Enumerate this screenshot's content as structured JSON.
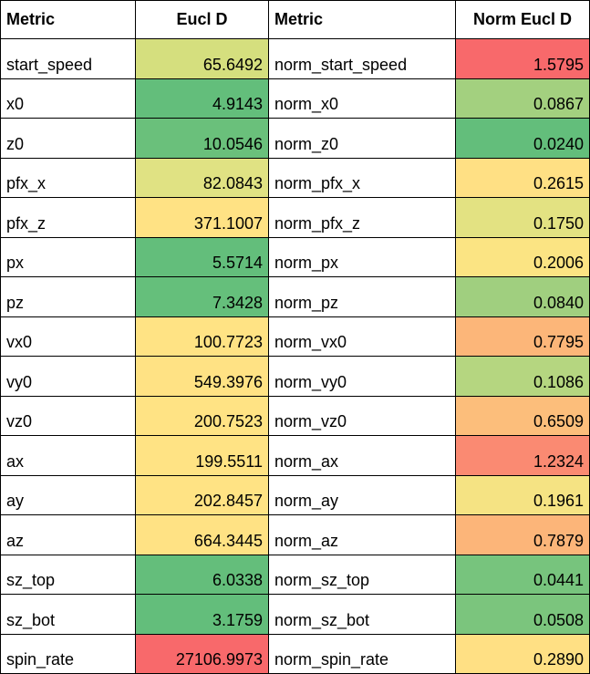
{
  "headers": [
    "Metric",
    "Eucl D",
    "Metric",
    "Norm Eucl D"
  ],
  "rows": [
    {
      "metric": "start_speed",
      "eucl_d": "65.6492",
      "eucl_color": "#d5df7e",
      "norm_metric": "norm_start_speed",
      "norm_eucl_d": "1.5795",
      "norm_color": "#f8696b"
    },
    {
      "metric": "x0",
      "eucl_d": "4.9143",
      "eucl_color": "#63be7b",
      "norm_metric": "norm_x0",
      "norm_eucl_d": "0.0867",
      "norm_color": "#a3d07f"
    },
    {
      "metric": "z0",
      "eucl_d": "10.0546",
      "eucl_color": "#6ac07b",
      "norm_metric": "norm_z0",
      "norm_eucl_d": "0.0240",
      "norm_color": "#63be7b"
    },
    {
      "metric": "pfx_x",
      "eucl_d": "82.0843",
      "eucl_color": "#e0e283",
      "norm_metric": "norm_pfx_x",
      "norm_eucl_d": "0.2615",
      "norm_color": "#ffe084"
    },
    {
      "metric": "pfx_z",
      "eucl_d": "371.1007",
      "eucl_color": "#ffe284",
      "norm_metric": "norm_pfx_z",
      "norm_eucl_d": "0.1750",
      "norm_color": "#e3e282"
    },
    {
      "metric": "px",
      "eucl_d": "5.5714",
      "eucl_color": "#63be7b",
      "norm_metric": "norm_px",
      "norm_eucl_d": "0.2006",
      "norm_color": "#fbe483"
    },
    {
      "metric": "pz",
      "eucl_d": "7.3428",
      "eucl_color": "#65bf7b",
      "norm_metric": "norm_pz",
      "norm_eucl_d": "0.0840",
      "norm_color": "#a0cf7f"
    },
    {
      "metric": "vx0",
      "eucl_d": "100.7723",
      "eucl_color": "#ffe384",
      "norm_metric": "norm_vx0",
      "norm_eucl_d": "0.7795",
      "norm_color": "#fcb679"
    },
    {
      "metric": "vy0",
      "eucl_d": "549.3976",
      "eucl_color": "#ffe284",
      "norm_metric": "norm_vy0",
      "norm_eucl_d": "0.1086",
      "norm_color": "#b5d680"
    },
    {
      "metric": "vz0",
      "eucl_d": "200.7523",
      "eucl_color": "#ffe384",
      "norm_metric": "norm_vz0",
      "norm_eucl_d": "0.6509",
      "norm_color": "#fcbe7b"
    },
    {
      "metric": "ax",
      "eucl_d": "199.5511",
      "eucl_color": "#ffe384",
      "norm_metric": "norm_ax",
      "norm_eucl_d": "1.2324",
      "norm_color": "#fa8a72"
    },
    {
      "metric": "ay",
      "eucl_d": "202.8457",
      "eucl_color": "#ffe384",
      "norm_metric": "norm_ay",
      "norm_eucl_d": "0.1961",
      "norm_color": "#f5e383"
    },
    {
      "metric": "az",
      "eucl_d": "664.3445",
      "eucl_color": "#ffe284",
      "norm_metric": "norm_az",
      "norm_eucl_d": "0.7879",
      "norm_color": "#fcb579"
    },
    {
      "metric": "sz_top",
      "eucl_d": "6.0338",
      "eucl_color": "#64be7b",
      "norm_metric": "norm_sz_top",
      "norm_eucl_d": "0.0441",
      "norm_color": "#77c47d"
    },
    {
      "metric": "sz_bot",
      "eucl_d": "3.1759",
      "eucl_color": "#63be7b",
      "norm_metric": "norm_sz_bot",
      "norm_eucl_d": "0.0508",
      "norm_color": "#7bc57d"
    },
    {
      "metric": "spin_rate",
      "eucl_d": "27106.9973",
      "eucl_color": "#f8696b",
      "norm_metric": "norm_spin_rate",
      "norm_eucl_d": "0.2890",
      "norm_color": "#ffe084"
    }
  ]
}
